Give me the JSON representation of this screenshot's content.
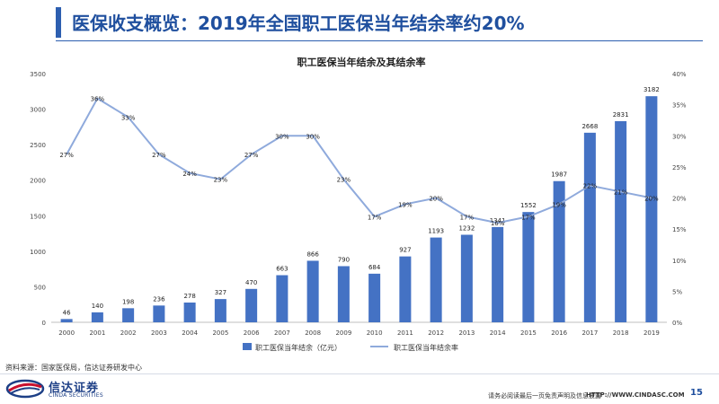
{
  "header": {
    "title": "医保收支概览：2019年全国职工医保当年结余率约20%"
  },
  "chart_data": {
    "type": "bar",
    "title": "职工医保当年结余及其结余率",
    "categories": [
      "2000",
      "2001",
      "2002",
      "2003",
      "2004",
      "2005",
      "2006",
      "2007",
      "2008",
      "2009",
      "2010",
      "2011",
      "2012",
      "2013",
      "2014",
      "2015",
      "2016",
      "2017",
      "2018",
      "2019"
    ],
    "series": [
      {
        "name": "职工医保当年结余（亿元）",
        "type": "bar",
        "axis": "left",
        "color": "#4472c4",
        "values": [
          46,
          140,
          198,
          236,
          278,
          327,
          470,
          663,
          866,
          790,
          684,
          927,
          1193,
          1232,
          1341,
          1552,
          1987,
          2668,
          2831,
          3182
        ],
        "labels": [
          "46",
          "140",
          "198",
          "236",
          "278",
          "327",
          "470",
          "663",
          "866",
          "790",
          "684",
          "927",
          "1193",
          "1232",
          "1341",
          "1552",
          "1987",
          "2668",
          "2831",
          "3182"
        ]
      },
      {
        "name": "职工医保当年结余率",
        "type": "line",
        "axis": "right",
        "color": "#8faadc",
        "values": [
          27,
          36,
          33,
          27,
          24,
          23,
          27,
          30,
          30,
          23,
          17,
          19,
          20,
          17,
          16,
          17,
          19,
          22,
          21,
          20
        ],
        "labels": [
          "27%",
          "36%",
          "33%",
          "27%",
          "24%",
          "23%",
          "27%",
          "30%",
          "30%",
          "23%",
          "17%",
          "19%",
          "20%",
          "17%",
          "16%",
          "17%",
          "19%",
          "22%",
          "21%",
          "20%"
        ]
      }
    ],
    "y_left": {
      "min": 0,
      "max": 3500,
      "ticks": [
        "0",
        "500",
        "1000",
        "1500",
        "2000",
        "2500",
        "3000",
        "3500"
      ]
    },
    "y_right": {
      "min": 0,
      "max": 40,
      "ticks": [
        "0%",
        "5%",
        "10%",
        "15%",
        "20%",
        "25%",
        "30%",
        "35%",
        "40%"
      ]
    },
    "grid": false,
    "legend_position": "bottom"
  },
  "footer": {
    "source": "资料来源：国家医保局，信达证券研发中心",
    "logo_cn": "信达证券",
    "logo_en": "CINDA SECURITIES",
    "disclaimer": "请务必阅读最后一页免责声明及信息披露",
    "website": "HTTP://WWW.CINDASC.COM",
    "page_number": "15"
  }
}
